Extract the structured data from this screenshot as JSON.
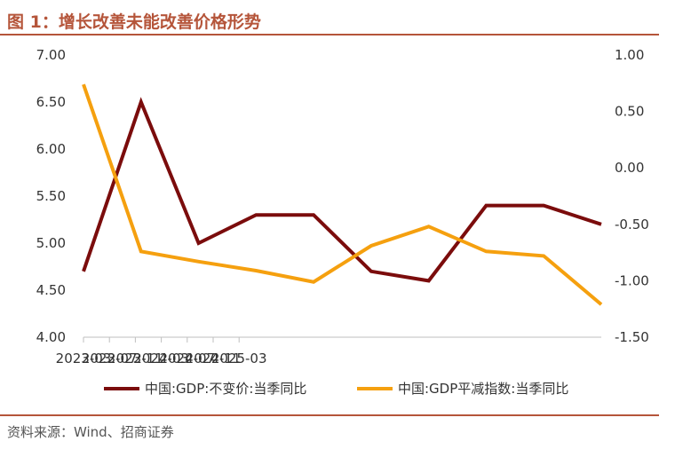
{
  "header": {
    "title": "图 1：增长改善未能改善价格形势"
  },
  "footer": {
    "source": "资料来源：Wind、招商证券"
  },
  "chart_data": {
    "type": "line",
    "x": [
      "2023-03",
      "2023-06",
      "2023-09",
      "2023-12",
      "2024-03",
      "2024-06",
      "2024-09",
      "2024-12",
      "2025-03",
      "2025-06"
    ],
    "x_tick_labels": [
      "2023-03",
      "2023-07",
      "2023-11",
      "2024-03",
      "2024-07",
      "2024-11",
      "2025-03"
    ],
    "x_tick_months": [
      0,
      4,
      8,
      12,
      16,
      20,
      24
    ],
    "left_axis": {
      "ylim": [
        4.0,
        7.0
      ],
      "ticks": [
        "7.00",
        "6.50",
        "6.00",
        "5.50",
        "5.00",
        "4.50",
        "4.00"
      ]
    },
    "right_axis": {
      "ylim": [
        -1.5,
        1.0
      ],
      "ticks": [
        "1.00",
        "0.50",
        "0.00",
        "-0.50",
        "-1.00",
        "-1.50"
      ]
    },
    "series": [
      {
        "name": "中国:GDP:不变价:当季同比",
        "axis": "left",
        "color": "#7b0c0c",
        "values": [
          4.7,
          6.5,
          5.0,
          5.3,
          5.3,
          4.7,
          4.6,
          5.4,
          5.4,
          5.2
        ]
      },
      {
        "name": "中国:GDP平减指数:当季同比",
        "axis": "right",
        "color": "#f5a00f",
        "values": [
          0.74,
          -0.74,
          -0.83,
          -0.91,
          -1.01,
          -0.69,
          -0.52,
          -0.74,
          -0.78,
          -1.21
        ]
      }
    ],
    "grid": false,
    "legend_position": "bottom"
  }
}
